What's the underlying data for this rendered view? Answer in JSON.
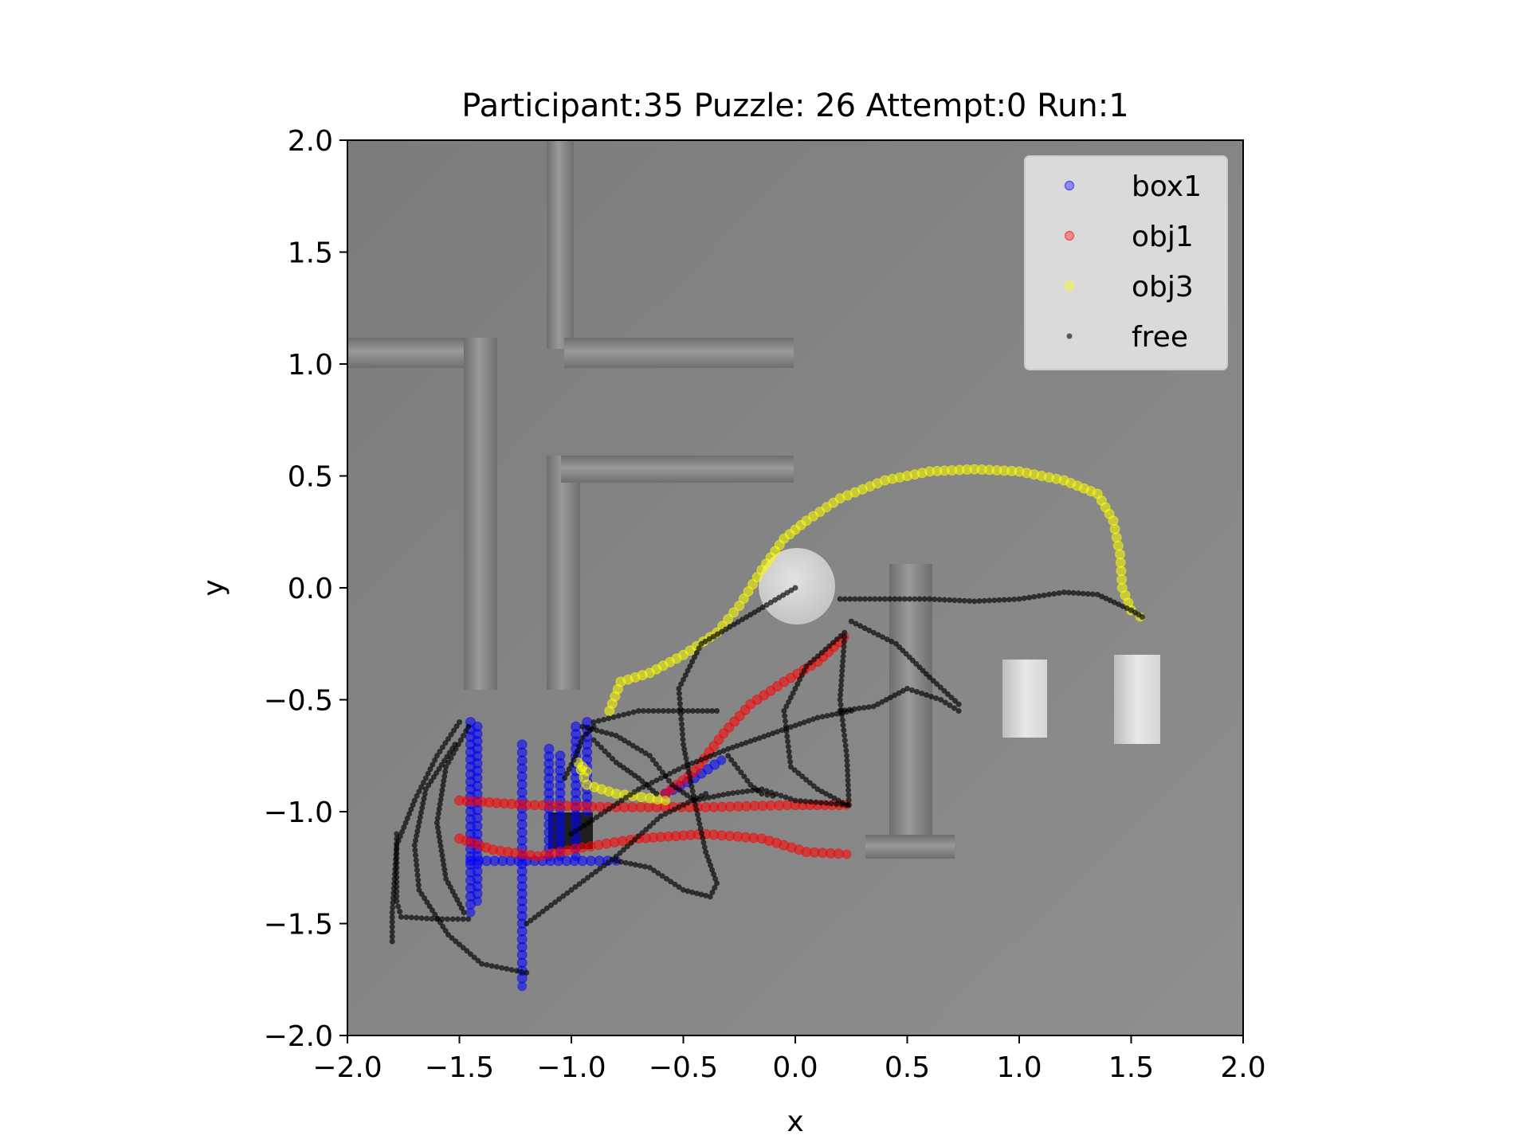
{
  "chart_data": {
    "type": "scatter",
    "title": "Participant:35 Puzzle: 26 Attempt:0 Run:1",
    "xlabel": "x",
    "ylabel": "y",
    "xlim": [
      -2.0,
      2.0
    ],
    "ylim": [
      -2.0,
      2.0
    ],
    "xticks": [
      "−2.0",
      "−1.5",
      "−1.0",
      "−0.5",
      "0.0",
      "0.5",
      "1.0",
      "1.5",
      "2.0"
    ],
    "yticks": [
      "2.0",
      "1.5",
      "1.0",
      "0.5",
      "0.0",
      "−0.5",
      "−1.0",
      "−1.5",
      "−2.0"
    ],
    "xtick_values": [
      -2.0,
      -1.5,
      -1.0,
      -0.5,
      0.0,
      0.5,
      1.0,
      1.5,
      2.0
    ],
    "ytick_values": [
      2.0,
      1.5,
      1.0,
      0.5,
      0.0,
      -0.5,
      -1.0,
      -1.5,
      -2.0
    ],
    "legend_position": "upper right",
    "background": "grey top-down scene with walls, a round disc and rectangular blocks",
    "series": [
      {
        "name": "box1",
        "color": "#0000ff",
        "paths": [
          [
            [
              -1.45,
              -0.6
            ],
            [
              -1.45,
              -0.8
            ],
            [
              -1.45,
              -1.0
            ],
            [
              -1.45,
              -1.2
            ],
            [
              -1.45,
              -1.45
            ]
          ],
          [
            [
              -1.42,
              -0.62
            ],
            [
              -1.42,
              -0.85
            ],
            [
              -1.42,
              -1.1
            ],
            [
              -1.42,
              -1.4
            ]
          ],
          [
            [
              -1.22,
              -0.7
            ],
            [
              -1.22,
              -0.95
            ],
            [
              -1.22,
              -1.2
            ],
            [
              -1.22,
              -1.5
            ],
            [
              -1.22,
              -1.78
            ]
          ],
          [
            [
              -1.1,
              -0.72
            ],
            [
              -1.1,
              -0.95
            ],
            [
              -1.1,
              -1.2
            ]
          ],
          [
            [
              -1.05,
              -0.75
            ],
            [
              -1.05,
              -0.95
            ],
            [
              -1.05,
              -1.2
            ]
          ],
          [
            [
              -0.98,
              -0.62
            ],
            [
              -0.98,
              -0.85
            ],
            [
              -0.98,
              -1.05
            ],
            [
              -0.98,
              -1.2
            ]
          ],
          [
            [
              -0.93,
              -0.6
            ],
            [
              -0.93,
              -0.8
            ],
            [
              -0.93,
              -1.0
            ]
          ],
          [
            [
              -1.45,
              -1.22
            ],
            [
              -1.2,
              -1.22
            ],
            [
              -0.95,
              -1.22
            ],
            [
              -0.8,
              -1.22
            ]
          ],
          [
            [
              -0.58,
              -0.92
            ],
            [
              -0.45,
              -0.85
            ],
            [
              -0.33,
              -0.77
            ]
          ]
        ]
      },
      {
        "name": "obj1",
        "color": "#ff0000",
        "paths": [
          [
            [
              -1.5,
              -0.95
            ],
            [
              -1.2,
              -0.97
            ],
            [
              -0.8,
              -0.98
            ],
            [
              -0.4,
              -0.98
            ],
            [
              0.0,
              -0.97
            ],
            [
              0.23,
              -0.97
            ]
          ],
          [
            [
              -1.5,
              -1.12
            ],
            [
              -1.35,
              -1.17
            ],
            [
              -1.15,
              -1.2
            ],
            [
              -0.95,
              -1.16
            ],
            [
              -0.7,
              -1.12
            ],
            [
              -0.4,
              -1.1
            ],
            [
              -0.15,
              -1.12
            ],
            [
              0.05,
              -1.18
            ],
            [
              0.23,
              -1.19
            ]
          ],
          [
            [
              -0.58,
              -0.92
            ],
            [
              -0.45,
              -0.82
            ],
            [
              -0.32,
              -0.65
            ],
            [
              -0.2,
              -0.52
            ],
            [
              -0.05,
              -0.42
            ],
            [
              0.1,
              -0.33
            ],
            [
              0.22,
              -0.22
            ]
          ]
        ]
      },
      {
        "name": "obj3",
        "color": "#ffff00",
        "paths": [
          [
            [
              -0.83,
              -0.55
            ],
            [
              -0.78,
              -0.42
            ],
            [
              -0.65,
              -0.38
            ],
            [
              -0.5,
              -0.3
            ],
            [
              -0.35,
              -0.2
            ],
            [
              -0.25,
              -0.08
            ],
            [
              -0.15,
              0.08
            ],
            [
              -0.05,
              0.22
            ],
            [
              0.05,
              0.3
            ],
            [
              0.2,
              0.4
            ],
            [
              0.4,
              0.48
            ],
            [
              0.6,
              0.52
            ],
            [
              0.8,
              0.53
            ],
            [
              1.0,
              0.52
            ],
            [
              1.2,
              0.48
            ],
            [
              1.35,
              0.42
            ],
            [
              1.42,
              0.3
            ],
            [
              1.45,
              0.15
            ],
            [
              1.46,
              0.0
            ],
            [
              1.5,
              -0.1
            ],
            [
              1.54,
              -0.13
            ]
          ],
          [
            [
              -0.97,
              -0.78
            ],
            [
              -0.93,
              -0.88
            ],
            [
              -0.8,
              -0.92
            ],
            [
              -0.65,
              -0.94
            ],
            [
              -0.58,
              -0.95
            ]
          ],
          [
            [
              -0.95,
              -0.8
            ],
            [
              -0.93,
              -0.82
            ]
          ]
        ]
      },
      {
        "name": "free",
        "color": "#000000",
        "paths": [
          [
            [
              0.0,
              0.0
            ],
            [
              -0.2,
              -0.12
            ],
            [
              -0.42,
              -0.25
            ],
            [
              -0.52,
              -0.45
            ],
            [
              -0.5,
              -0.7
            ],
            [
              -0.45,
              -0.95
            ],
            [
              -0.4,
              -1.18
            ],
            [
              -0.35,
              -1.32
            ],
            [
              -0.38,
              -1.38
            ],
            [
              -0.5,
              -1.35
            ],
            [
              -0.65,
              -1.25
            ],
            [
              -0.8,
              -1.22
            ]
          ],
          [
            [
              0.2,
              -0.05
            ],
            [
              0.4,
              -0.05
            ],
            [
              0.6,
              -0.05
            ],
            [
              0.8,
              -0.06
            ],
            [
              1.0,
              -0.05
            ],
            [
              1.2,
              -0.02
            ],
            [
              1.35,
              -0.03
            ],
            [
              1.5,
              -0.1
            ],
            [
              1.55,
              -0.13
            ]
          ],
          [
            [
              0.25,
              -0.15
            ],
            [
              0.45,
              -0.25
            ],
            [
              0.6,
              -0.4
            ],
            [
              0.73,
              -0.52
            ]
          ],
          [
            [
              0.2,
              -0.55
            ],
            [
              0.35,
              -0.53
            ],
            [
              0.5,
              -0.45
            ],
            [
              0.65,
              -0.5
            ],
            [
              0.73,
              -0.55
            ]
          ],
          [
            [
              0.22,
              -0.2
            ],
            [
              0.05,
              -0.35
            ],
            [
              -0.05,
              -0.55
            ],
            [
              -0.02,
              -0.8
            ],
            [
              0.1,
              -0.9
            ],
            [
              0.23,
              -0.97
            ]
          ],
          [
            [
              0.22,
              -0.22
            ],
            [
              0.2,
              -0.5
            ],
            [
              0.23,
              -0.75
            ],
            [
              0.24,
              -0.97
            ]
          ],
          [
            [
              -1.5,
              -0.6
            ],
            [
              -1.6,
              -0.75
            ],
            [
              -1.7,
              -0.95
            ],
            [
              -1.78,
              -1.15
            ],
            [
              -1.8,
              -1.45
            ],
            [
              -1.8,
              -1.58
            ]
          ],
          [
            [
              -1.78,
              -1.1
            ],
            [
              -1.78,
              -1.4
            ],
            [
              -1.76,
              -1.47
            ],
            [
              -1.6,
              -1.48
            ],
            [
              -1.46,
              -1.48
            ]
          ],
          [
            [
              -1.46,
              -0.62
            ],
            [
              -1.56,
              -0.8
            ],
            [
              -1.6,
              -1.05
            ],
            [
              -1.56,
              -1.3
            ],
            [
              -1.48,
              -1.45
            ]
          ],
          [
            [
              -1.52,
              -0.7
            ],
            [
              -1.65,
              -0.9
            ],
            [
              -1.7,
              -1.15
            ],
            [
              -1.68,
              -1.35
            ],
            [
              -1.55,
              -1.55
            ],
            [
              -1.4,
              -1.68
            ],
            [
              -1.2,
              -1.72
            ]
          ],
          [
            [
              -1.2,
              -1.5
            ],
            [
              -1.0,
              -1.35
            ],
            [
              -0.8,
              -1.2
            ],
            [
              -0.6,
              -1.02
            ],
            [
              -0.4,
              -0.92
            ]
          ],
          [
            [
              -1.0,
              -1.1
            ],
            [
              -0.85,
              -1.0
            ],
            [
              -0.7,
              -0.9
            ],
            [
              -0.5,
              -0.8
            ],
            [
              -0.3,
              -0.72
            ],
            [
              -0.1,
              -0.65
            ],
            [
              0.1,
              -0.58
            ],
            [
              0.25,
              -0.55
            ]
          ],
          [
            [
              -0.95,
              -0.62
            ],
            [
              -0.8,
              -0.66
            ],
            [
              -0.65,
              -0.75
            ],
            [
              -0.55,
              -0.88
            ],
            [
              -0.45,
              -0.95
            ],
            [
              -0.3,
              -0.92
            ],
            [
              -0.15,
              -0.9
            ],
            [
              0.0,
              -0.95
            ],
            [
              0.23,
              -0.97
            ]
          ],
          [
            [
              -0.9,
              -0.6
            ],
            [
              -0.7,
              -0.55
            ],
            [
              -0.5,
              -0.55
            ],
            [
              -0.35,
              -0.55
            ]
          ],
          [
            [
              -0.9,
              -0.68
            ],
            [
              -0.8,
              -0.78
            ],
            [
              -0.7,
              -0.85
            ],
            [
              -0.62,
              -0.92
            ]
          ],
          [
            [
              -0.3,
              -0.75
            ],
            [
              -0.2,
              -0.88
            ],
            [
              -0.15,
              -0.92
            ],
            [
              -0.1,
              -0.93
            ]
          ],
          [
            [
              -1.03,
              -0.85
            ],
            [
              -0.98,
              -0.75
            ],
            [
              -0.95,
              -0.67
            ],
            [
              -0.9,
              -0.62
            ]
          ]
        ]
      }
    ]
  }
}
